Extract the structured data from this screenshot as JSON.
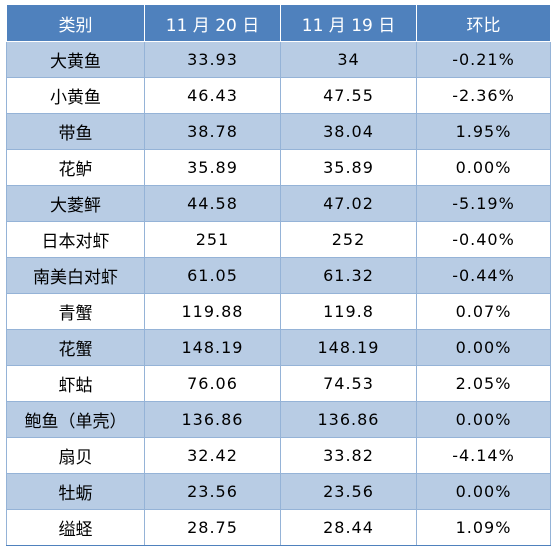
{
  "table": {
    "headers": [
      "类别",
      "11 月 20 日",
      "11 月 19 日",
      "环比"
    ],
    "rows": [
      [
        "大黄鱼",
        "33.93",
        "34",
        "-0.21%"
      ],
      [
        "小黄鱼",
        "46.43",
        "47.55",
        "-2.36%"
      ],
      [
        "带鱼",
        "38.78",
        "38.04",
        "1.95%"
      ],
      [
        "花鲈",
        "35.89",
        "35.89",
        "0.00%"
      ],
      [
        "大菱鲆",
        "44.58",
        "47.02",
        "-5.19%"
      ],
      [
        "日本对虾",
        "251",
        "252",
        "-0.40%"
      ],
      [
        "南美白对虾",
        "61.05",
        "61.32",
        "-0.44%"
      ],
      [
        "青蟹",
        "119.88",
        "119.8",
        "0.07%"
      ],
      [
        "花蟹",
        "148.19",
        "148.19",
        "0.00%"
      ],
      [
        "虾蛄",
        "76.06",
        "74.53",
        "2.05%"
      ],
      [
        "鲍鱼（单壳）",
        "136.86",
        "136.86",
        "0.00%"
      ],
      [
        "扇贝",
        "32.42",
        "33.82",
        "-4.14%"
      ],
      [
        "牡蛎",
        "23.56",
        "23.56",
        "0.00%"
      ],
      [
        "缢蛏",
        "28.75",
        "28.44",
        "1.09%"
      ]
    ]
  },
  "colors": {
    "header_bg": "#4f81bd",
    "band_bg": "#b8cce4",
    "row_bg": "#ffffff"
  }
}
